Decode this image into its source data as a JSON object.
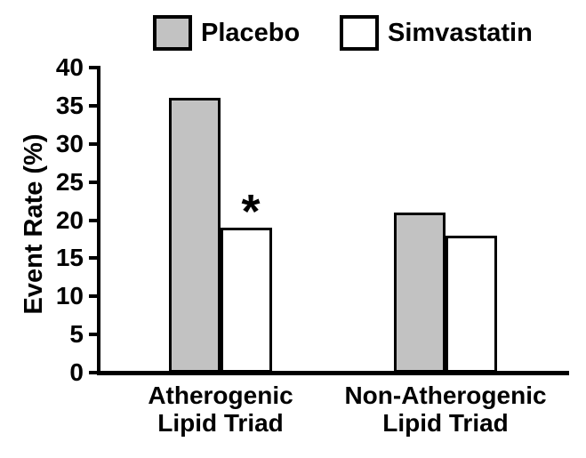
{
  "chart_data": {
    "type": "bar",
    "title": "",
    "ylabel": "Event Rate (%)",
    "xlabel": "",
    "ylim": [
      0,
      40
    ],
    "yticks": [
      0,
      5,
      10,
      15,
      20,
      25,
      30,
      35,
      40
    ],
    "grid": false,
    "legend_position": "top",
    "categories": [
      "Atherogenic Lipid Triad",
      "Non-Atherogenic Lipid Triad"
    ],
    "series": [
      {
        "name": "Placebo",
        "color": "#c2c2c2",
        "values": [
          36,
          21
        ]
      },
      {
        "name": "Simvastatin",
        "color": "#ffffff",
        "values": [
          19,
          18
        ]
      }
    ],
    "annotations": [
      {
        "text": "*",
        "category_index": 0,
        "series_index": 1
      }
    ],
    "axis_color": "#000000",
    "bar_border_color": "#000000"
  }
}
